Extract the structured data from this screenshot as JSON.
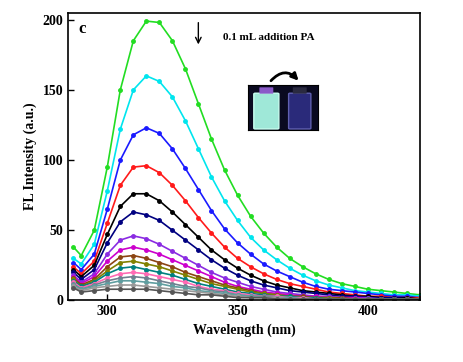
{
  "chart_data": {
    "type": "line",
    "panel_label": "c",
    "annotation": "0.1 mL addition PA",
    "x_label": "Wavelength (nm)",
    "y_label": "FL Intensity (a.u.)",
    "marker": "o",
    "xlim": [
      285,
      420
    ],
    "xticks": [
      300,
      350,
      400
    ],
    "ylim": [
      0,
      205
    ],
    "yticks": [
      0,
      50,
      100,
      150,
      200
    ],
    "x": [
      287,
      290,
      295,
      300,
      305,
      310,
      315,
      320,
      325,
      330,
      335,
      340,
      345,
      350,
      355,
      360,
      365,
      370,
      375,
      380,
      385,
      390,
      395,
      400,
      405,
      410,
      415,
      420
    ],
    "series": [
      {
        "color": "#22dd22",
        "values": [
          38,
          32,
          50,
          95,
          150,
          185,
          199,
          198,
          185,
          165,
          140,
          115,
          93,
          75,
          60,
          48,
          38,
          30,
          24,
          19,
          15,
          12,
          10,
          8,
          7,
          6,
          5,
          4
        ]
      },
      {
        "color": "#00e5ee",
        "values": [
          30,
          26,
          40,
          78,
          122,
          150,
          160,
          156,
          145,
          128,
          108,
          88,
          71,
          57,
          45,
          36,
          29,
          23,
          18,
          14,
          11,
          9,
          7,
          6,
          5,
          4,
          4,
          3
        ]
      },
      {
        "color": "#1a1aff",
        "values": [
          27,
          22,
          33,
          65,
          100,
          118,
          123,
          119,
          108,
          94,
          79,
          64,
          51,
          41,
          33,
          26,
          21,
          17,
          13,
          10,
          8,
          7,
          6,
          5,
          4,
          3,
          3,
          2
        ]
      },
      {
        "color": "#ff1a1a",
        "values": [
          24,
          19,
          28,
          55,
          82,
          95,
          96,
          91,
          82,
          71,
          59,
          48,
          38,
          30,
          24,
          19,
          15,
          12,
          10,
          8,
          6,
          5,
          4,
          3,
          3,
          2,
          2,
          2
        ]
      },
      {
        "color": "#000000",
        "values": [
          22,
          17,
          25,
          47,
          67,
          76,
          76,
          71,
          63,
          54,
          45,
          36,
          29,
          23,
          18,
          14,
          11,
          9,
          7,
          6,
          5,
          4,
          3,
          3,
          2,
          2,
          2,
          1
        ]
      },
      {
        "color": "#000080",
        "values": [
          20,
          15,
          22,
          41,
          56,
          63,
          61,
          57,
          50,
          43,
          36,
          29,
          23,
          18,
          14,
          11,
          9,
          7,
          6,
          5,
          4,
          3,
          3,
          2,
          2,
          2,
          1,
          1
        ]
      },
      {
        "color": "#8a2be2",
        "values": [
          18,
          13,
          19,
          33,
          43,
          46,
          44,
          40,
          35,
          30,
          25,
          20,
          16,
          13,
          10,
          8,
          6,
          5,
          4,
          3,
          3,
          2,
          2,
          2,
          1,
          1,
          1,
          1
        ]
      },
      {
        "color": "#cc00cc",
        "values": [
          17,
          12,
          17,
          28,
          36,
          38,
          36,
          33,
          29,
          25,
          21,
          17,
          13,
          10,
          8,
          6,
          5,
          4,
          3,
          3,
          2,
          2,
          2,
          1,
          1,
          1,
          1,
          1
        ]
      },
      {
        "color": "#8b4513",
        "values": [
          16,
          11,
          15,
          24,
          31,
          32,
          30,
          27,
          24,
          20,
          17,
          14,
          11,
          9,
          7,
          5,
          4,
          3,
          3,
          2,
          2,
          2,
          1,
          1,
          1,
          1,
          1,
          1
        ]
      },
      {
        "color": "#808000",
        "values": [
          15,
          10,
          14,
          21,
          27,
          28,
          26,
          24,
          21,
          18,
          15,
          12,
          10,
          8,
          6,
          5,
          4,
          3,
          2,
          2,
          2,
          1,
          1,
          1,
          1,
          1,
          1,
          1
        ]
      },
      {
        "color": "#008080",
        "values": [
          14,
          10,
          13,
          19,
          23,
          24,
          22,
          20,
          18,
          15,
          12,
          10,
          8,
          6,
          5,
          4,
          3,
          3,
          2,
          2,
          1,
          1,
          1,
          1,
          1,
          1,
          1,
          1
        ]
      },
      {
        "color": "#ff69b4",
        "values": [
          13,
          9,
          12,
          16,
          19,
          20,
          19,
          17,
          15,
          13,
          10,
          8,
          7,
          5,
          4,
          3,
          3,
          2,
          2,
          1,
          1,
          1,
          1,
          1,
          1,
          1,
          1,
          1
        ]
      },
      {
        "color": "#708090",
        "values": [
          12,
          8,
          11,
          14,
          16,
          17,
          16,
          14,
          12,
          10,
          9,
          7,
          6,
          4,
          3,
          3,
          2,
          2,
          1,
          1,
          1,
          1,
          1,
          1,
          1,
          1,
          1,
          1
        ]
      },
      {
        "color": "#5f9ea0",
        "values": [
          11,
          8,
          10,
          12,
          14,
          14,
          13,
          12,
          10,
          9,
          7,
          6,
          5,
          4,
          3,
          2,
          2,
          2,
          1,
          1,
          1,
          1,
          1,
          1,
          1,
          1,
          1,
          1
        ]
      },
      {
        "color": "#999999",
        "values": [
          10,
          7,
          9,
          10,
          11,
          11,
          10,
          9,
          8,
          7,
          6,
          5,
          4,
          3,
          2,
          2,
          2,
          1,
          1,
          1,
          1,
          1,
          1,
          1,
          1,
          1,
          1,
          1
        ]
      },
      {
        "color": "#555555",
        "values": [
          9,
          6,
          7,
          8,
          8,
          8,
          8,
          7,
          6,
          5,
          4,
          4,
          3,
          2,
          2,
          2,
          1,
          1,
          1,
          1,
          1,
          1,
          1,
          1,
          1,
          1,
          1,
          1
        ]
      }
    ]
  }
}
